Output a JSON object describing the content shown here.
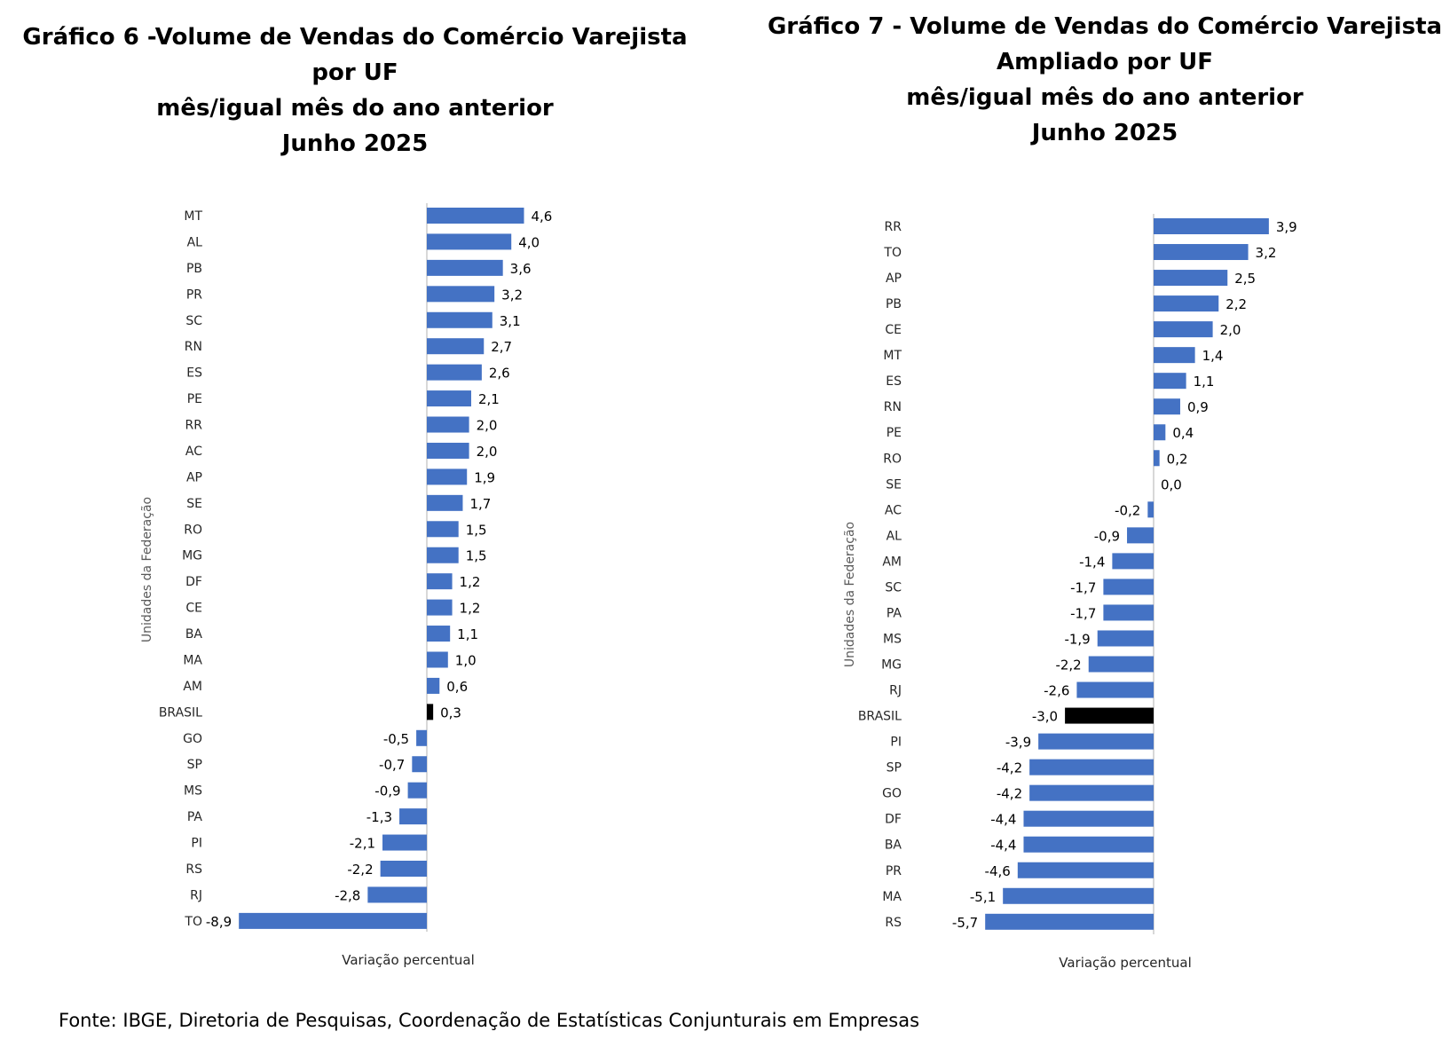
{
  "colors": {
    "bar": "#4472C4",
    "highlight": "#000000",
    "axis": "#bfbfbf",
    "label": "#262626"
  },
  "charts": [
    {
      "title_lines": [
        "Gráfico 6 -Volume de Vendas do Comércio Varejista",
        "por UF",
        "mês/igual mês do ano anterior",
        "Junho 2025"
      ],
      "xlabel": "Variação percentual",
      "ylabel": "Unidades da Federação"
    },
    {
      "title_lines": [
        "Gráfico 7 - Volume de Vendas do Comércio Varejista",
        "Ampliado por UF",
        "mês/igual mês do ano anterior",
        "Junho 2025"
      ],
      "xlabel": "Variação percentual",
      "ylabel": "Unidades da Federação"
    }
  ],
  "chart_data": [
    {
      "type": "bar",
      "orientation": "horizontal",
      "categories": [
        "MT",
        "AL",
        "PB",
        "PR",
        "SC",
        "RN",
        "ES",
        "PE",
        "RR",
        "AC",
        "AP",
        "SE",
        "RO",
        "MG",
        "DF",
        "CE",
        "BA",
        "MA",
        "AM",
        "BRASIL",
        "GO",
        "SP",
        "MS",
        "PA",
        "PI",
        "RS",
        "RJ",
        "TO"
      ],
      "values": [
        4.6,
        4.0,
        3.6,
        3.2,
        3.1,
        2.7,
        2.6,
        2.1,
        2.0,
        2.0,
        1.9,
        1.7,
        1.5,
        1.5,
        1.2,
        1.2,
        1.1,
        1.0,
        0.6,
        0.3,
        -0.5,
        -0.7,
        -0.9,
        -1.3,
        -2.1,
        -2.2,
        -2.8,
        -8.9
      ],
      "value_labels": [
        "4,6",
        "4,0",
        "3,6",
        "3,2",
        "3,1",
        "2,7",
        "2,6",
        "2,1",
        "2,0",
        "2,0",
        "1,9",
        "1,7",
        "1,5",
        "1,5",
        "1,2",
        "1,2",
        "1,1",
        "1,0",
        "0,6",
        "0,3",
        "-0,5",
        "-0,7",
        "-0,9",
        "-1,3",
        "-2,1",
        "-2,2",
        "-2,8",
        "-8,9"
      ],
      "highlight": "BRASIL"
    },
    {
      "type": "bar",
      "orientation": "horizontal",
      "categories": [
        "RR",
        "TO",
        "AP",
        "PB",
        "CE",
        "MT",
        "ES",
        "RN",
        "PE",
        "RO",
        "SE",
        "AC",
        "AL",
        "AM",
        "SC",
        "PA",
        "MS",
        "MG",
        "RJ",
        "BRASIL",
        "PI",
        "SP",
        "GO",
        "DF",
        "BA",
        "PR",
        "MA",
        "RS"
      ],
      "values": [
        3.9,
        3.2,
        2.5,
        2.2,
        2.0,
        1.4,
        1.1,
        0.9,
        0.4,
        0.2,
        0.0,
        -0.2,
        -0.9,
        -1.4,
        -1.7,
        -1.7,
        -1.9,
        -2.2,
        -2.6,
        -3.0,
        -3.9,
        -4.2,
        -4.2,
        -4.4,
        -4.4,
        -4.6,
        -5.1,
        -5.7
      ],
      "value_labels": [
        "3,9",
        "3,2",
        "2,5",
        "2,2",
        "2,0",
        "1,4",
        "1,1",
        "0,9",
        "0,4",
        "0,2",
        "0,0",
        "-0,2",
        "-0,9",
        "-1,4",
        "-1,7",
        "-1,7",
        "-1,9",
        "-2,2",
        "-2,6",
        "-3,0",
        "-3,9",
        "-4,2",
        "-4,2",
        "-4,4",
        "-4,4",
        "-4,6",
        "-5,1",
        "-5,7"
      ],
      "highlight": "BRASIL"
    }
  ],
  "source": "Fonte: IBGE, Diretoria de Pesquisas, Coordenação de Estatísticas Conjunturais em Empresas"
}
